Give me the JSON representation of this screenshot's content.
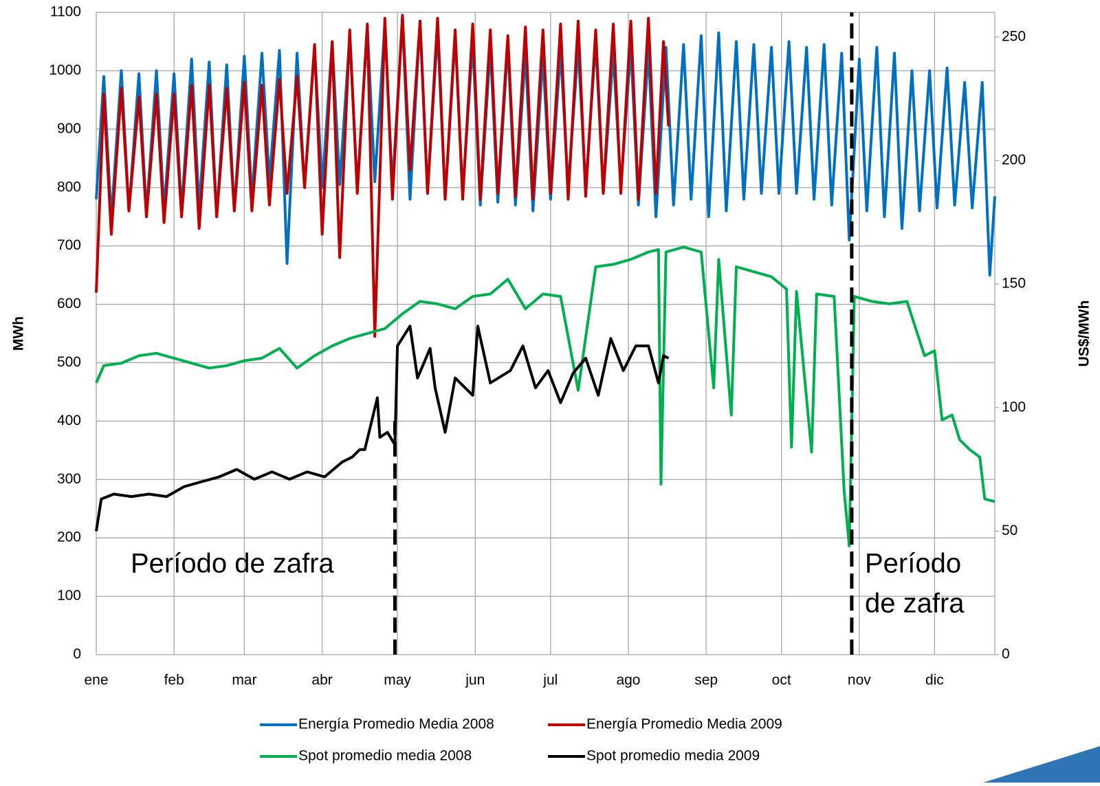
{
  "chart_data": {
    "type": "line",
    "y_label": "MWh",
    "y2_label": "US$/MWh",
    "xlim": [
      0,
      358
    ],
    "xticks": [
      {
        "value": 0,
        "label": "ene"
      },
      {
        "value": 31,
        "label": "feb"
      },
      {
        "value": 59,
        "label": "mar"
      },
      {
        "value": 90,
        "label": "abr"
      },
      {
        "value": 120,
        "label": "may"
      },
      {
        "value": 151,
        "label": "jun"
      },
      {
        "value": 181,
        "label": "jul"
      },
      {
        "value": 212,
        "label": "ago"
      },
      {
        "value": 243,
        "label": "sep"
      },
      {
        "value": 273,
        "label": "oct"
      },
      {
        "value": 304,
        "label": "nov"
      },
      {
        "value": 334,
        "label": "dic"
      }
    ],
    "ylim": [
      0,
      1100
    ],
    "yticks": [
      0,
      100,
      200,
      300,
      400,
      500,
      600,
      700,
      800,
      900,
      1000,
      1100
    ],
    "y2lim": [
      0,
      260
    ],
    "y2ticks": [
      0,
      50,
      100,
      150,
      200,
      250
    ],
    "grid": true,
    "annotations": [
      "Período de zafra",
      "Período",
      "de zafra"
    ],
    "vlines": [
      {
        "x": 119,
        "top": 400
      },
      {
        "x": 301,
        "top": 1100
      }
    ],
    "series": [
      {
        "name": "Energía Promedio Media 2008",
        "color": "#0070c0",
        "x": [
          0,
          3,
          6,
          10,
          13,
          17,
          20,
          24,
          27,
          31,
          34,
          38,
          41,
          45,
          48,
          52,
          55,
          59,
          62,
          66,
          69,
          73,
          76,
          80,
          83,
          87,
          90,
          94,
          97,
          101,
          104,
          108,
          111,
          115,
          118,
          122,
          125,
          129,
          132,
          136,
          139,
          143,
          146,
          150,
          153,
          157,
          160,
          164,
          167,
          171,
          174,
          178,
          181,
          185,
          188,
          192,
          195,
          199,
          202,
          206,
          209,
          213,
          216,
          220,
          223,
          227,
          230,
          234,
          237,
          241,
          244,
          248,
          251,
          255,
          258,
          262,
          265,
          269,
          272,
          276,
          279,
          283,
          286,
          290,
          293,
          297,
          300,
          304,
          307,
          311,
          314,
          318,
          321,
          325,
          328,
          332,
          335,
          339,
          342,
          346,
          349,
          353,
          356,
          358
        ],
        "values": [
          780,
          990,
          745,
          1000,
          760,
          995,
          755,
          1000,
          760,
          995,
          760,
          1020,
          765,
          1015,
          750,
          1010,
          760,
          1025,
          780,
          1030,
          810,
          1035,
          670,
          1030,
          800,
          1040,
          800,
          1050,
          805,
          1060,
          800,
          1075,
          810,
          1080,
          800,
          1090,
          780,
          1085,
          790,
          1070,
          780,
          1060,
          790,
          1050,
          770,
          1040,
          775,
          1045,
          770,
          1030,
          760,
          1025,
          780,
          1035,
          800,
          1040,
          800,
          1050,
          790,
          1030,
          800,
          1040,
          770,
          1035,
          750,
          1040,
          770,
          1045,
          780,
          1060,
          750,
          1065,
          760,
          1050,
          780,
          1045,
          790,
          1040,
          790,
          1050,
          790,
          1040,
          780,
          1045,
          770,
          1030,
          710,
          1020,
          760,
          1040,
          750,
          1030,
          730,
          1000,
          760,
          1000,
          765,
          1005,
          770,
          980,
          765,
          980,
          650,
          785
        ]
      },
      {
        "name": "Energía Promedio Media 2009",
        "color": "#c00000",
        "x": [
          0,
          3,
          6,
          10,
          13,
          17,
          20,
          24,
          27,
          31,
          34,
          38,
          41,
          45,
          48,
          52,
          55,
          59,
          62,
          66,
          69,
          73,
          76,
          80,
          83,
          87,
          90,
          94,
          97,
          101,
          104,
          108,
          111,
          115,
          118,
          122,
          125,
          129,
          132,
          136,
          139,
          143,
          146,
          150,
          153,
          157,
          160,
          164,
          167,
          171,
          174,
          178,
          181,
          185,
          188,
          192,
          195,
          199,
          202,
          206,
          209,
          213,
          216,
          220,
          223,
          226,
          228
        ],
        "values": [
          620,
          960,
          720,
          970,
          760,
          955,
          750,
          960,
          740,
          960,
          750,
          975,
          730,
          975,
          750,
          970,
          760,
          980,
          760,
          975,
          770,
          985,
          790,
          990,
          800,
          1045,
          720,
          1050,
          680,
          1070,
          790,
          1080,
          545,
          1090,
          780,
          1095,
          830,
          1085,
          790,
          1090,
          780,
          1070,
          780,
          1080,
          780,
          1070,
          790,
          1060,
          785,
          1075,
          780,
          1070,
          790,
          1080,
          780,
          1085,
          785,
          1070,
          790,
          1080,
          790,
          1085,
          780,
          1090,
          790,
          1050,
          905
        ]
      },
      {
        "name": "Spot promedio media 2008",
        "color": "#00b050",
        "axis": "y2",
        "x": [
          0,
          3,
          10,
          17,
          24,
          31,
          38,
          45,
          52,
          59,
          66,
          73,
          80,
          87,
          94,
          101,
          108,
          115,
          122,
          129,
          136,
          143,
          150,
          157,
          164,
          171,
          178,
          185,
          192,
          199,
          206,
          213,
          220,
          224,
          225,
          227,
          234,
          241,
          246,
          248,
          253,
          255,
          262,
          269,
          275,
          277,
          279,
          285,
          287,
          294,
          298,
          300,
          302,
          309,
          316,
          323,
          330,
          334,
          337,
          341,
          344,
          348,
          352,
          354,
          358
        ],
        "values": [
          110,
          117,
          118,
          121,
          122,
          120,
          118,
          116,
          117,
          119,
          120,
          124,
          116,
          121,
          125,
          128,
          130,
          132,
          138,
          143,
          142,
          140,
          145,
          146,
          152,
          140,
          146,
          145,
          107,
          157,
          158,
          160,
          163,
          164,
          69,
          163,
          165,
          163,
          108,
          160,
          97,
          157,
          155,
          153,
          148,
          84,
          147,
          82,
          146,
          145,
          66,
          44,
          145,
          143,
          142,
          143,
          121,
          123,
          95,
          97,
          87,
          83,
          80,
          63,
          62
        ]
      },
      {
        "name": "Spot promedio media 2009",
        "color": "#000000",
        "axis": "y2",
        "x": [
          0,
          2,
          7,
          14,
          21,
          28,
          35,
          42,
          49,
          56,
          63,
          70,
          77,
          84,
          91,
          98,
          102,
          105,
          107,
          112,
          113,
          116,
          119,
          120,
          125,
          128,
          133,
          135,
          139,
          143,
          150,
          152,
          157,
          165,
          170,
          175,
          180,
          185,
          190,
          195,
          200,
          205,
          210,
          215,
          220,
          224,
          226,
          228
        ],
        "values": [
          50,
          63,
          65,
          64,
          65,
          64,
          68,
          70,
          72,
          75,
          71,
          74,
          71,
          74,
          72,
          78,
          80,
          83,
          83,
          104,
          88,
          90,
          85,
          125,
          133,
          112,
          124,
          108,
          90,
          112,
          105,
          133,
          110,
          115,
          125,
          108,
          115,
          102,
          114,
          120,
          105,
          128,
          115,
          125,
          125,
          110,
          121,
          120
        ]
      }
    ]
  }
}
